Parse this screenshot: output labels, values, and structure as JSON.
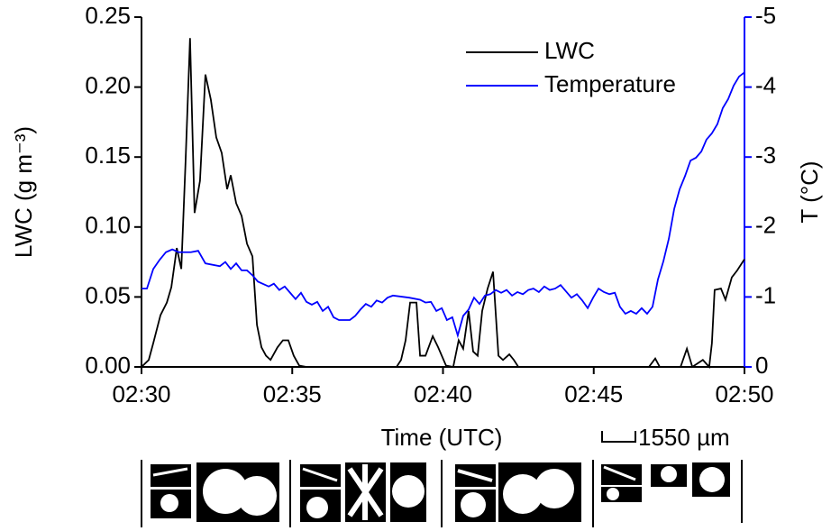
{
  "chart_data": {
    "type": "line",
    "xlabel": "Time (UTC)",
    "ylabel": "LWC (g m⁻³)",
    "y2label": "T (°C)",
    "xlim": [
      0,
      20
    ],
    "xticks": [
      {
        "value": 0,
        "label": "02:30"
      },
      {
        "value": 5,
        "label": "02:35"
      },
      {
        "value": 10,
        "label": "02:40"
      },
      {
        "value": 15,
        "label": "02:45"
      },
      {
        "value": 20,
        "label": "02:50"
      }
    ],
    "ylim": [
      0,
      0.25
    ],
    "yticks": [
      {
        "value": 0,
        "label": "0.00"
      },
      0.05,
      {
        "value": 0.1,
        "label": "0.10"
      },
      0.15,
      {
        "value": 0.2,
        "label": "0.20"
      },
      0.25
    ],
    "y2lim": [
      0,
      -5
    ],
    "y2ticks": [
      -5,
      -4,
      -3,
      -2,
      -1,
      0
    ],
    "y2color": "#0000ff",
    "legend": "upper right",
    "series": [
      {
        "name": "LWC",
        "color": "#000000",
        "x": [
          0.0,
          0.24,
          0.39,
          0.63,
          0.84,
          0.99,
          1.17,
          1.32,
          1.46,
          1.61,
          1.76,
          1.94,
          2.12,
          2.3,
          2.48,
          2.66,
          2.84,
          2.96,
          3.14,
          3.32,
          3.5,
          3.68,
          3.83,
          3.98,
          4.13,
          4.28,
          4.51,
          4.69,
          4.87,
          5.05,
          5.23,
          5.47,
          8.46,
          8.61,
          8.76,
          8.91,
          9.12,
          9.24,
          9.42,
          9.66,
          9.84,
          10.1,
          10.34,
          10.52,
          10.67,
          10.85,
          11.0,
          11.15,
          11.3,
          11.48,
          11.66,
          11.84,
          11.99,
          12.2,
          12.35,
          12.5,
          16.83,
          17.04,
          17.19,
          17.88,
          18.09,
          18.27,
          18.62,
          18.83,
          18.92,
          19.01,
          19.22,
          19.37,
          19.58,
          19.76,
          20.0
        ],
        "values": [
          0,
          0.005,
          0.017,
          0.037,
          0.046,
          0.057,
          0.085,
          0.07,
          0.146,
          0.235,
          0.11,
          0.133,
          0.209,
          0.191,
          0.164,
          0.153,
          0.127,
          0.137,
          0.117,
          0.108,
          0.088,
          0.079,
          0.03,
          0.014,
          0.008,
          0.005,
          0.014,
          0.019,
          0.019,
          0.008,
          0.001,
          0,
          0,
          0.005,
          0.019,
          0.046,
          0.046,
          0.008,
          0.008,
          0.022,
          0.014,
          0.001,
          0,
          0.019,
          0.013,
          0.04,
          0.011,
          0.008,
          0.04,
          0.056,
          0.068,
          0.008,
          0.005,
          0.009,
          0.005,
          0,
          0,
          0.006,
          0,
          0,
          0.013,
          0,
          0.005,
          0,
          0.017,
          0.055,
          0.056,
          0.048,
          0.064,
          0.069,
          0.077
        ]
      },
      {
        "name": "Temperature",
        "color": "#0000ff",
        "axis": "y2",
        "x": [
          0.0,
          0.18,
          0.39,
          0.6,
          0.81,
          1.02,
          1.23,
          1.64,
          1.88,
          2.12,
          2.6,
          2.78,
          2.96,
          3.14,
          3.32,
          3.5,
          3.68,
          3.86,
          4.22,
          4.39,
          4.57,
          4.75,
          4.93,
          5.11,
          5.29,
          5.47,
          5.65,
          5.83,
          6.01,
          6.19,
          6.37,
          6.55,
          6.91,
          7.09,
          7.26,
          7.44,
          7.62,
          7.8,
          7.98,
          8.16,
          8.34,
          8.88,
          9.24,
          9.42,
          9.6,
          9.78,
          9.96,
          10.13,
          10.31,
          10.49,
          10.67,
          10.85,
          11.03,
          11.21,
          11.39,
          11.57,
          11.75,
          11.93,
          12.11,
          12.29,
          12.47,
          12.65,
          12.83,
          13.0,
          13.18,
          13.36,
          13.54,
          13.72,
          13.9,
          14.08,
          14.26,
          14.44,
          14.62,
          14.8,
          14.98,
          15.16,
          15.34,
          15.52,
          15.7,
          15.87,
          16.05,
          16.23,
          16.41,
          16.59,
          16.77,
          16.95,
          17.13,
          17.31,
          17.49,
          17.67,
          17.85,
          18.03,
          18.21,
          18.39,
          18.57,
          18.74,
          18.92,
          19.1,
          19.28,
          19.46,
          19.64,
          19.82,
          20.0
        ],
        "values": [
          -1.12,
          -1.12,
          -1.4,
          -1.53,
          -1.64,
          -1.68,
          -1.64,
          -1.64,
          -1.66,
          -1.48,
          -1.44,
          -1.5,
          -1.4,
          -1.48,
          -1.38,
          -1.38,
          -1.31,
          -1.22,
          -1.15,
          -1.19,
          -1.1,
          -1.15,
          -1.06,
          -0.97,
          -1.06,
          -0.93,
          -0.89,
          -0.93,
          -0.8,
          -0.86,
          -0.71,
          -0.67,
          -0.67,
          -0.73,
          -0.82,
          -0.9,
          -0.86,
          -0.95,
          -0.92,
          -0.99,
          -1.02,
          -0.99,
          -0.96,
          -0.92,
          -0.93,
          -0.8,
          -0.84,
          -0.67,
          -0.71,
          -0.45,
          -0.73,
          -0.82,
          -0.99,
          -0.9,
          -1.02,
          -1.04,
          -1.1,
          -1.06,
          -1.1,
          -1.02,
          -1.07,
          -1.04,
          -1.1,
          -1.12,
          -1.07,
          -1.15,
          -1.1,
          -1.12,
          -1.17,
          -1.08,
          -0.99,
          -1.04,
          -0.95,
          -0.84,
          -0.99,
          -1.12,
          -1.07,
          -1.04,
          -1.06,
          -0.86,
          -0.76,
          -0.8,
          -0.76,
          -0.84,
          -0.76,
          -0.86,
          -1.25,
          -1.51,
          -1.83,
          -2.26,
          -2.54,
          -2.73,
          -2.95,
          -2.99,
          -3.08,
          -3.25,
          -3.34,
          -3.47,
          -3.7,
          -3.83,
          -4.02,
          -4.15,
          -4.21
        ]
      }
    ],
    "scale_bar_label": "1550 µm"
  }
}
